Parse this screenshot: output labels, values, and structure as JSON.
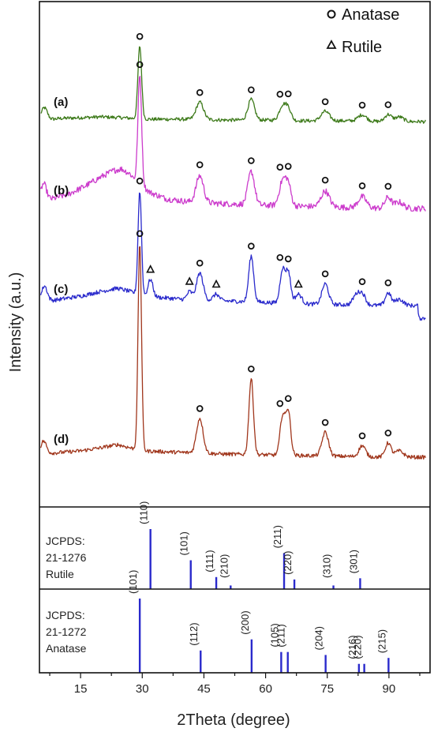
{
  "chart_data": {
    "type": "line",
    "xlabel": "2Theta (degree)",
    "ylabel": "Intensity (a.u.)",
    "xlim": [
      5,
      100
    ],
    "x_ticks": [
      15,
      30,
      45,
      60,
      75,
      90
    ],
    "legend": {
      "placement": "top-right",
      "entries": [
        {
          "marker": "circle",
          "label": "Anatase"
        },
        {
          "marker": "triangle",
          "label": "Rutile"
        }
      ]
    },
    "series": [
      {
        "name": "(a)",
        "color": "#3d7a1a",
        "baseline_points": [
          [
            5,
            8
          ],
          [
            8,
            7
          ],
          [
            10,
            8
          ],
          [
            15,
            9
          ],
          [
            20,
            10
          ],
          [
            25,
            9
          ],
          [
            28,
            8
          ],
          [
            32,
            7
          ],
          [
            40,
            7
          ],
          [
            50,
            6
          ],
          [
            60,
            6
          ],
          [
            70,
            5
          ],
          [
            80,
            5
          ],
          [
            90,
            4
          ],
          [
            99,
            4
          ]
        ],
        "peaks": [
          [
            6.2,
            14,
            0.7
          ],
          [
            29.4,
            92,
            0.45
          ],
          [
            44.0,
            22,
            0.9
          ],
          [
            56.5,
            26,
            0.8
          ],
          [
            64.1,
            18,
            0.8
          ],
          [
            65.5,
            15,
            0.7
          ],
          [
            74.5,
            12,
            1.0
          ],
          [
            83.5,
            8,
            1.0
          ],
          [
            89.8,
            9,
            0.8
          ],
          [
            92.5,
            6,
            1.0
          ]
        ],
        "noise": 2.2,
        "markers": [
          {
            "x": 29.4,
            "type": "anatase"
          },
          {
            "x": 44.0,
            "type": "anatase"
          },
          {
            "x": 56.5,
            "type": "anatase"
          },
          {
            "x": 63.5,
            "type": "anatase"
          },
          {
            "x": 65.5,
            "type": "anatase"
          },
          {
            "x": 74.5,
            "type": "anatase"
          },
          {
            "x": 83.5,
            "type": "anatase"
          },
          {
            "x": 89.8,
            "type": "anatase"
          }
        ]
      },
      {
        "name": "(b)",
        "color": "#cc3ccc",
        "baseline_points": [
          [
            5,
            14
          ],
          [
            8,
            18
          ],
          [
            12,
            24
          ],
          [
            16,
            34
          ],
          [
            20,
            46
          ],
          [
            23,
            54
          ],
          [
            25,
            56
          ],
          [
            27,
            50
          ],
          [
            29,
            38
          ],
          [
            32,
            26
          ],
          [
            36,
            18
          ],
          [
            42,
            14
          ],
          [
            50,
            12
          ],
          [
            60,
            10
          ],
          [
            75,
            8
          ],
          [
            90,
            6
          ],
          [
            99,
            6
          ]
        ],
        "peaks": [
          [
            6.0,
            22,
            0.7
          ],
          [
            29.4,
            138,
            0.45
          ],
          [
            44.0,
            34,
            0.9
          ],
          [
            56.5,
            42,
            0.8
          ],
          [
            64.1,
            30,
            0.8
          ],
          [
            65.5,
            26,
            0.7
          ],
          [
            74.5,
            20,
            1.0
          ],
          [
            83.5,
            14,
            1.0
          ],
          [
            89.8,
            14,
            0.8
          ],
          [
            92.5,
            8,
            1.0
          ]
        ],
        "noise": 3.8,
        "markers": [
          {
            "x": 29.4,
            "type": "anatase"
          },
          {
            "x": 44.0,
            "type": "anatase"
          },
          {
            "x": 56.5,
            "type": "anatase"
          },
          {
            "x": 63.5,
            "type": "anatase"
          },
          {
            "x": 65.5,
            "type": "anatase"
          },
          {
            "x": 74.5,
            "type": "anatase"
          },
          {
            "x": 83.5,
            "type": "anatase"
          },
          {
            "x": 89.8,
            "type": "anatase"
          }
        ]
      },
      {
        "name": "(c)",
        "color": "#2a2acc",
        "baseline_points": [
          [
            5,
            12
          ],
          [
            10,
            16
          ],
          [
            15,
            20
          ],
          [
            20,
            26
          ],
          [
            24,
            30
          ],
          [
            27,
            26
          ],
          [
            30,
            20
          ],
          [
            35,
            18
          ],
          [
            40,
            16
          ],
          [
            50,
            14
          ],
          [
            60,
            12
          ],
          [
            70,
            10
          ],
          [
            80,
            9
          ],
          [
            90,
            8
          ],
          [
            97,
            8
          ],
          [
            97.3,
            -8
          ],
          [
            99,
            -8
          ]
        ],
        "peaks": [
          [
            6.2,
            20,
            0.7
          ],
          [
            29.4,
            132,
            0.42
          ],
          [
            32.0,
            22,
            0.6
          ],
          [
            41.5,
            10,
            0.6
          ],
          [
            44.0,
            34,
            0.8
          ],
          [
            48.0,
            8,
            0.7
          ],
          [
            56.5,
            58,
            0.6
          ],
          [
            64.1,
            42,
            0.6
          ],
          [
            65.5,
            40,
            0.6
          ],
          [
            68.0,
            12,
            0.8
          ],
          [
            74.5,
            26,
            0.8
          ],
          [
            82.0,
            12,
            0.8
          ],
          [
            83.5,
            14,
            0.8
          ],
          [
            89.8,
            16,
            0.7
          ],
          [
            92.5,
            8,
            1.0
          ]
        ],
        "noise": 2.6,
        "markers": [
          {
            "x": 29.4,
            "type": "anatase"
          },
          {
            "x": 32.0,
            "type": "rutile"
          },
          {
            "x": 41.5,
            "type": "rutile"
          },
          {
            "x": 44.0,
            "type": "anatase"
          },
          {
            "x": 48.0,
            "type": "rutile"
          },
          {
            "x": 56.5,
            "type": "anatase"
          },
          {
            "x": 63.5,
            "type": "anatase"
          },
          {
            "x": 65.5,
            "type": "anatase"
          },
          {
            "x": 68.0,
            "type": "rutile"
          },
          {
            "x": 74.5,
            "type": "anatase"
          },
          {
            "x": 83.5,
            "type": "anatase"
          },
          {
            "x": 89.8,
            "type": "anatase"
          }
        ]
      },
      {
        "name": "(d)",
        "color": "#a0361c",
        "baseline_points": [
          [
            5,
            10
          ],
          [
            10,
            12
          ],
          [
            15,
            14
          ],
          [
            20,
            18
          ],
          [
            24,
            22
          ],
          [
            27,
            18
          ],
          [
            30,
            14
          ],
          [
            40,
            12
          ],
          [
            50,
            10
          ],
          [
            60,
            9
          ],
          [
            70,
            8
          ],
          [
            80,
            7
          ],
          [
            90,
            6
          ],
          [
            99,
            6
          ]
        ],
        "peaks": [
          [
            6.0,
            16,
            0.7
          ],
          [
            29.4,
            262,
            0.42
          ],
          [
            44.0,
            44,
            0.8
          ],
          [
            56.5,
            96,
            0.55
          ],
          [
            64.1,
            48,
            0.6
          ],
          [
            65.5,
            56,
            0.6
          ],
          [
            74.5,
            30,
            0.8
          ],
          [
            83.5,
            14,
            0.8
          ],
          [
            89.8,
            18,
            0.7
          ],
          [
            92.5,
            8,
            1.0
          ]
        ],
        "noise": 2.4,
        "markers": [
          {
            "x": 29.4,
            "type": "anatase"
          },
          {
            "x": 44.0,
            "type": "anatase"
          },
          {
            "x": 56.5,
            "type": "anatase"
          },
          {
            "x": 63.5,
            "type": "anatase"
          },
          {
            "x": 65.5,
            "type": "anatase"
          },
          {
            "x": 74.5,
            "type": "anatase"
          },
          {
            "x": 83.5,
            "type": "anatase"
          },
          {
            "x": 89.8,
            "type": "anatase"
          }
        ]
      }
    ],
    "references": [
      {
        "line1": "JCPDS:",
        "line2": "21-1276",
        "line3": "Rutile",
        "color": "#2a2acc",
        "peaks": [
          {
            "x": 32.0,
            "intensity": 100,
            "hkl": "(110)"
          },
          {
            "x": 41.8,
            "intensity": 48,
            "hkl": "(101)"
          },
          {
            "x": 48.0,
            "intensity": 20,
            "hkl": "(111)"
          },
          {
            "x": 51.5,
            "intensity": 6,
            "hkl": "(210)"
          },
          {
            "x": 64.5,
            "intensity": 60,
            "hkl": "(211)"
          },
          {
            "x": 67.0,
            "intensity": 16,
            "hkl": "(220)"
          },
          {
            "x": 76.5,
            "intensity": 6,
            "hkl": "(310)"
          },
          {
            "x": 83.0,
            "intensity": 18,
            "hkl": "(301)"
          }
        ]
      },
      {
        "line1": "JCPDS:",
        "line2": "21-1272",
        "line3": "Anatase",
        "color": "#2a2acc",
        "peaks": [
          {
            "x": 29.4,
            "intensity": 100,
            "hkl": "(101)"
          },
          {
            "x": 44.2,
            "intensity": 30,
            "hkl": "(112)"
          },
          {
            "x": 56.6,
            "intensity": 45,
            "hkl": "(200)"
          },
          {
            "x": 63.8,
            "intensity": 28,
            "hkl": "(105)"
          },
          {
            "x": 65.4,
            "intensity": 28,
            "hkl": "(211)"
          },
          {
            "x": 74.6,
            "intensity": 24,
            "hkl": "(204)"
          },
          {
            "x": 82.7,
            "intensity": 12,
            "hkl": "(216)"
          },
          {
            "x": 84.0,
            "intensity": 12,
            "hkl": "(220)"
          },
          {
            "x": 89.9,
            "intensity": 20,
            "hkl": "(215)"
          }
        ]
      }
    ]
  }
}
